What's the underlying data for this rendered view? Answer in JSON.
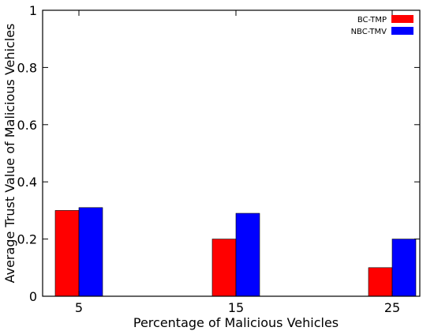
{
  "chart_data": {
    "type": "bar",
    "title": "",
    "xlabel": "Percentage of Malicious Vehicles",
    "ylabel": "Average Trust Value of Malicious Vehicles",
    "categories": [
      "5",
      "15",
      "25"
    ],
    "series": [
      {
        "name": "BC-TMP",
        "color": "#ff0000",
        "values": [
          0.3,
          0.2,
          0.1
        ]
      },
      {
        "name": "NBC-TMV",
        "color": "#0000ff",
        "values": [
          0.31,
          0.29,
          0.2
        ]
      }
    ],
    "ylim": [
      0,
      1
    ],
    "yticks": [
      "0",
      "0.2",
      "0.4",
      "0.6",
      "0.8",
      "1"
    ],
    "grid": false,
    "legend_position": "top-right"
  }
}
